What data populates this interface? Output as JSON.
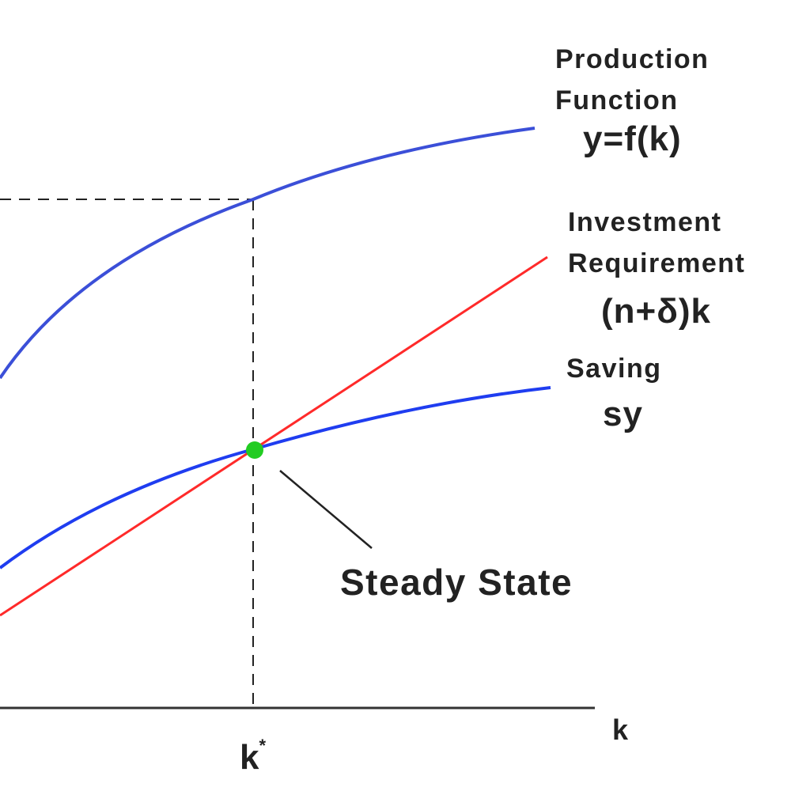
{
  "colors": {
    "production_curve": "#3b4fd8",
    "saving_curve": "#1f3df0",
    "investment_line": "#ff2a2a",
    "steady_state_point": "#22cc22",
    "axis": "#333333",
    "guide": "#222222",
    "text": "#222222"
  },
  "labels": {
    "production_line1": "Production",
    "production_line2": "Function",
    "production_formula": "y=f(k)",
    "investment_line1": "Investment",
    "investment_line2": "Requirement",
    "investment_formula": "(n+δ)k",
    "saving_line1": "Saving",
    "saving_formula": "sy",
    "steady_state": "Steady State",
    "x_axis": "k",
    "k_star": "k",
    "k_star_sup": "*"
  }
}
